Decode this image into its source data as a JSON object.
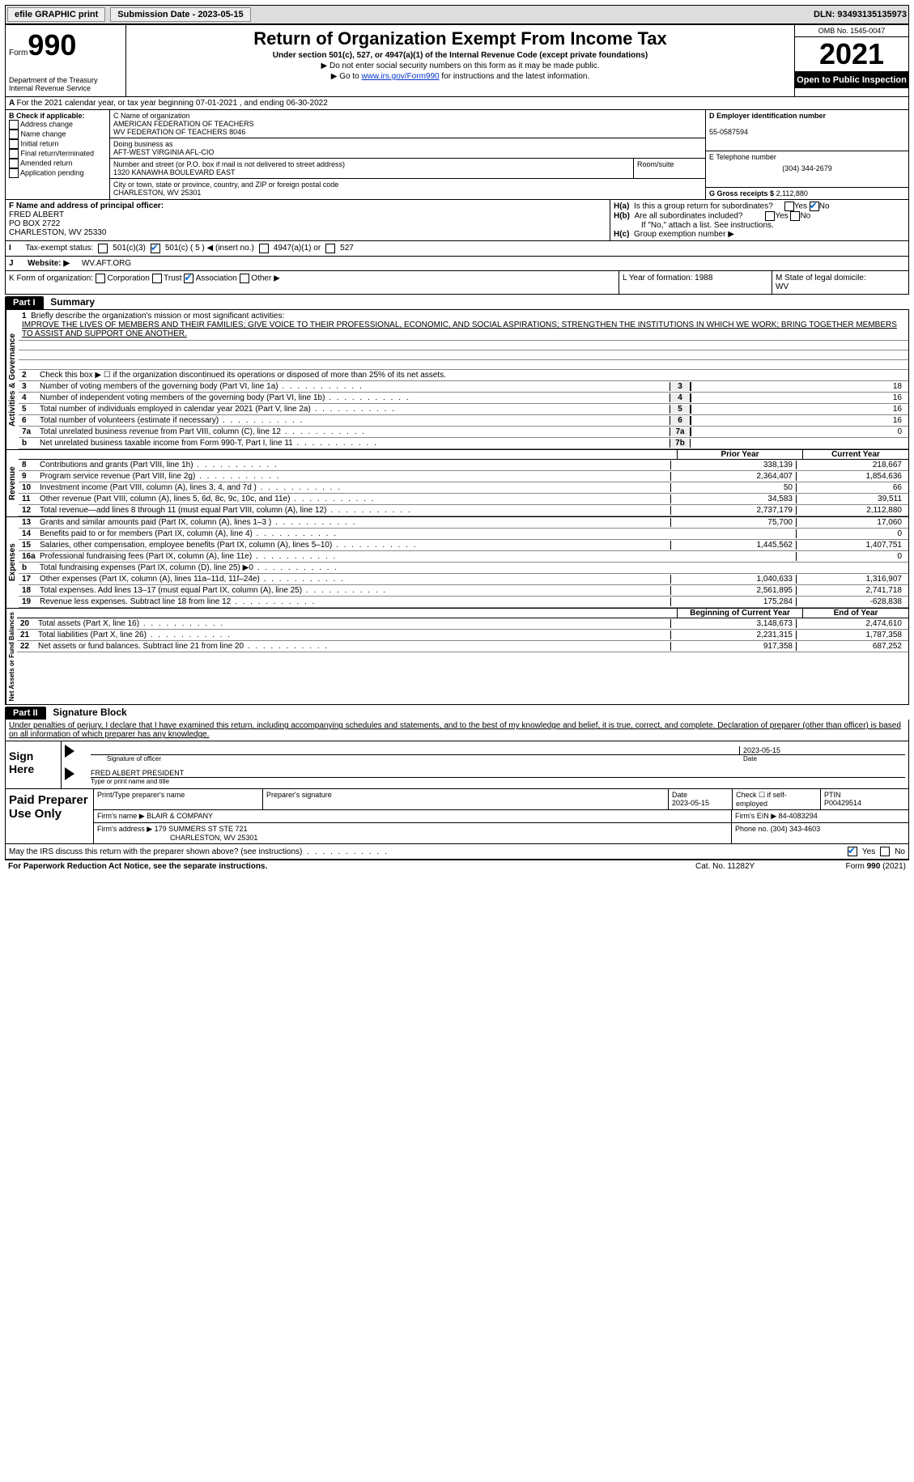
{
  "top": {
    "efile": "efile GRAPHIC print",
    "submission": "Submission Date - 2023-05-15",
    "dln": "DLN: 93493135135973"
  },
  "header": {
    "form_word": "Form",
    "form_num": "990",
    "title": "Return of Organization Exempt From Income Tax",
    "subtitle": "Under section 501(c), 527, or 4947(a)(1) of the Internal Revenue Code (except private foundations)",
    "line1": "▶ Do not enter social security numbers on this form as it may be made public.",
    "line2_pre": "▶ Go to ",
    "line2_link": "www.irs.gov/Form990",
    "line2_post": " for instructions and the latest information.",
    "dept": "Department of the Treasury\nInternal Revenue Service",
    "omb": "OMB No. 1545-0047",
    "year": "2021",
    "open": "Open to Public Inspection"
  },
  "A": {
    "text": "For the 2021 calendar year, or tax year beginning 07-01-2021   , and ending 06-30-2022"
  },
  "B": {
    "label": "B Check if applicable:",
    "items": [
      "Address change",
      "Name change",
      "Initial return",
      "Final return/terminated",
      "Amended return",
      "Application pending"
    ]
  },
  "C": {
    "name_lbl": "C Name of organization",
    "name1": "AMERICAN FEDERATION OF TEACHERS",
    "name2": "WV FEDERATION OF TEACHERS 8046",
    "dba_lbl": "Doing business as",
    "dba": "AFT-WEST VIRGINIA AFL-CIO",
    "street_lbl": "Number and street (or P.O. box if mail is not delivered to street address)",
    "street": "1320 KANAWHA BOULEVARD EAST",
    "room_lbl": "Room/suite",
    "city_lbl": "City or town, state or province, country, and ZIP or foreign postal code",
    "city": "CHARLESTON, WV  25301"
  },
  "D": {
    "lbl": "D Employer identification number",
    "val": "55-0587594"
  },
  "E": {
    "lbl": "E Telephone number",
    "val": "(304) 344-2679"
  },
  "G": {
    "lbl": "G Gross receipts $",
    "val": "2,112,880"
  },
  "F": {
    "lbl": "F  Name and address of principal officer:",
    "name": "FRED ALBERT",
    "addr": "PO BOX 2722",
    "city": "CHARLESTON, WV  25330"
  },
  "H": {
    "a": "Is this a group return for subordinates?",
    "b": "Are all subordinates included?",
    "b_note": "If \"No,\" attach a list. See instructions.",
    "c": "Group exemption number ▶",
    "ha_lbl": "H(a)",
    "hb_lbl": "H(b)",
    "hc_lbl": "H(c)",
    "yes": "Yes",
    "no": "No"
  },
  "I": {
    "lbl": "Tax-exempt status:",
    "opts": [
      "501(c)(3)",
      "501(c) ( 5 ) ◀ (insert no.)",
      "4947(a)(1) or",
      "527"
    ]
  },
  "J": {
    "lbl": "Website: ▶",
    "val": "WV.AFT.ORG"
  },
  "K": {
    "lbl": "K Form of organization:",
    "opts": [
      "Corporation",
      "Trust",
      "Association",
      "Other ▶"
    ]
  },
  "L": {
    "lbl": "L Year of formation:",
    "val": "1988"
  },
  "M": {
    "lbl": "M State of legal domicile:",
    "val": "WV"
  },
  "Part1": {
    "hdr": "Part I",
    "title": "Summary",
    "mission_lbl": "Briefly describe the organization's mission or most significant activities:",
    "mission": "IMPROVE THE LIVES OF MEMBERS AND THEIR FAMILIES; GIVE VOICE TO THEIR PROFESSIONAL, ECONOMIC, AND SOCIAL ASPIRATIONS; STRENGTHEN THE INSTITUTIONS IN WHICH WE WORK; BRING TOGETHER MEMBERS TO ASSIST AND SUPPORT ONE ANOTHER.",
    "line2": "Check this box ▶ ☐ if the organization discontinued its operations or disposed of more than 25% of its net assets.",
    "side1": "Activities & Governance",
    "side2": "Revenue",
    "side3": "Expenses",
    "side4": "Net Assets or Fund Balances",
    "prior": "Prior Year",
    "current": "Current Year",
    "begin": "Beginning of Current Year",
    "end": "End of Year",
    "rows_gov": [
      {
        "n": "3",
        "t": "Number of voting members of the governing body (Part VI, line 1a)",
        "b": "3",
        "v": "18"
      },
      {
        "n": "4",
        "t": "Number of independent voting members of the governing body (Part VI, line 1b)",
        "b": "4",
        "v": "16"
      },
      {
        "n": "5",
        "t": "Total number of individuals employed in calendar year 2021 (Part V, line 2a)",
        "b": "5",
        "v": "16"
      },
      {
        "n": "6",
        "t": "Total number of volunteers (estimate if necessary)",
        "b": "6",
        "v": "16"
      },
      {
        "n": "7a",
        "t": "Total unrelated business revenue from Part VIII, column (C), line 12",
        "b": "7a",
        "v": "0"
      },
      {
        "n": "b",
        "t": "Net unrelated business taxable income from Form 990-T, Part I, line 11",
        "b": "7b",
        "v": ""
      }
    ],
    "rows_rev": [
      {
        "n": "8",
        "t": "Contributions and grants (Part VIII, line 1h)",
        "p": "338,139",
        "c": "218,667"
      },
      {
        "n": "9",
        "t": "Program service revenue (Part VIII, line 2g)",
        "p": "2,364,407",
        "c": "1,854,636"
      },
      {
        "n": "10",
        "t": "Investment income (Part VIII, column (A), lines 3, 4, and 7d )",
        "p": "50",
        "c": "66"
      },
      {
        "n": "11",
        "t": "Other revenue (Part VIII, column (A), lines 5, 6d, 8c, 9c, 10c, and 11e)",
        "p": "34,583",
        "c": "39,511"
      },
      {
        "n": "12",
        "t": "Total revenue—add lines 8 through 11 (must equal Part VIII, column (A), line 12)",
        "p": "2,737,179",
        "c": "2,112,880"
      }
    ],
    "rows_exp": [
      {
        "n": "13",
        "t": "Grants and similar amounts paid (Part IX, column (A), lines 1–3 )",
        "p": "75,700",
        "c": "17,060"
      },
      {
        "n": "14",
        "t": "Benefits paid to or for members (Part IX, column (A), line 4)",
        "p": "",
        "c": "0"
      },
      {
        "n": "15",
        "t": "Salaries, other compensation, employee benefits (Part IX, column (A), lines 5–10)",
        "p": "1,445,562",
        "c": "1,407,751"
      },
      {
        "n": "16a",
        "t": "Professional fundraising fees (Part IX, column (A), line 11e)",
        "p": "",
        "c": "0"
      },
      {
        "n": "b",
        "t": "Total fundraising expenses (Part IX, column (D), line 25) ▶0",
        "p": "",
        "c": "",
        "grey": true
      },
      {
        "n": "17",
        "t": "Other expenses (Part IX, column (A), lines 11a–11d, 11f–24e)",
        "p": "1,040,633",
        "c": "1,316,907"
      },
      {
        "n": "18",
        "t": "Total expenses. Add lines 13–17 (must equal Part IX, column (A), line 25)",
        "p": "2,561,895",
        "c": "2,741,718"
      },
      {
        "n": "19",
        "t": "Revenue less expenses. Subtract line 18 from line 12",
        "p": "175,284",
        "c": "-628,838"
      }
    ],
    "rows_net": [
      {
        "n": "20",
        "t": "Total assets (Part X, line 16)",
        "p": "3,148,673",
        "c": "2,474,610"
      },
      {
        "n": "21",
        "t": "Total liabilities (Part X, line 26)",
        "p": "2,231,315",
        "c": "1,787,358"
      },
      {
        "n": "22",
        "t": "Net assets or fund balances. Subtract line 21 from line 20",
        "p": "917,358",
        "c": "687,252"
      }
    ]
  },
  "Part2": {
    "hdr": "Part II",
    "title": "Signature Block",
    "decl": "Under penalties of perjury, I declare that I have examined this return, including accompanying schedules and statements, and to the best of my knowledge and belief, it is true, correct, and complete. Declaration of preparer (other than officer) is based on all information of which preparer has any knowledge.",
    "sign_here": "Sign Here",
    "sig_officer": "Signature of officer",
    "sig_date": "Date",
    "sig_date_val": "2023-05-15",
    "sig_name": "FRED ALBERT PRESIDENT",
    "sig_name_lbl": "Type or print name and title"
  },
  "Paid": {
    "lbl": "Paid Preparer Use Only",
    "r1": {
      "c1": "Print/Type preparer's name",
      "c2": "Preparer's signature",
      "c3": "Date",
      "c3v": "2023-05-15",
      "c4": "Check ☐ if self-employed",
      "c5": "PTIN",
      "c5v": "P00429514"
    },
    "r2": {
      "c1": "Firm's name    ▶",
      "c1v": "BLAIR & COMPANY",
      "c2": "Firm's EIN ▶",
      "c2v": "84-4083294"
    },
    "r3": {
      "c1": "Firm's address ▶",
      "c1v": "179 SUMMERS ST STE 721",
      "c1v2": "CHARLESTON, WV  25301",
      "c2": "Phone no.",
      "c2v": "(304) 343-4603"
    }
  },
  "discuss": {
    "q": "May the IRS discuss this return with the preparer shown above? (see instructions)",
    "yes": "Yes",
    "no": "No"
  },
  "footer": {
    "l": "For Paperwork Reduction Act Notice, see the separate instructions.",
    "m": "Cat. No. 11282Y",
    "r": "Form 990 (2021)"
  }
}
